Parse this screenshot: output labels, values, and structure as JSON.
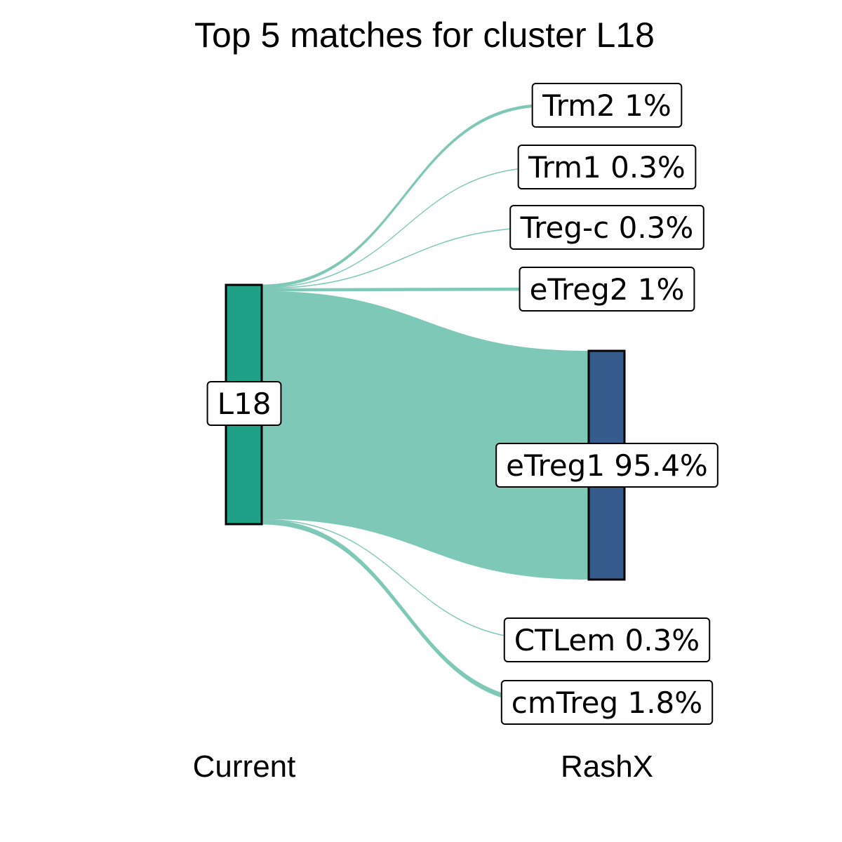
{
  "colors": {
    "source_node": "#1fa187",
    "target_node": "#365c8d",
    "flow": "#7ec8b8"
  },
  "chart_data": {
    "type": "sankey",
    "title": "Top 5 matches for cluster L18",
    "axis_labels": [
      "Current",
      "RashX"
    ],
    "source": {
      "name": "L18",
      "label": "L18"
    },
    "targets": [
      {
        "name": "Trm2",
        "label": "Trm2 1%",
        "percent": 1.0
      },
      {
        "name": "Trm1",
        "label": "Trm1 0.3%",
        "percent": 0.3
      },
      {
        "name": "Treg-c",
        "label": "Treg-c 0.3%",
        "percent": 0.3
      },
      {
        "name": "eTreg2",
        "label": "eTreg2 1%",
        "percent": 1.0
      },
      {
        "name": "eTreg1",
        "label": "eTreg1 95.4%",
        "percent": 95.4
      },
      {
        "name": "CTLem",
        "label": "CTLem 0.3%",
        "percent": 0.3
      },
      {
        "name": "cmTreg",
        "label": "cmTreg 1.8%",
        "percent": 1.8
      }
    ]
  }
}
